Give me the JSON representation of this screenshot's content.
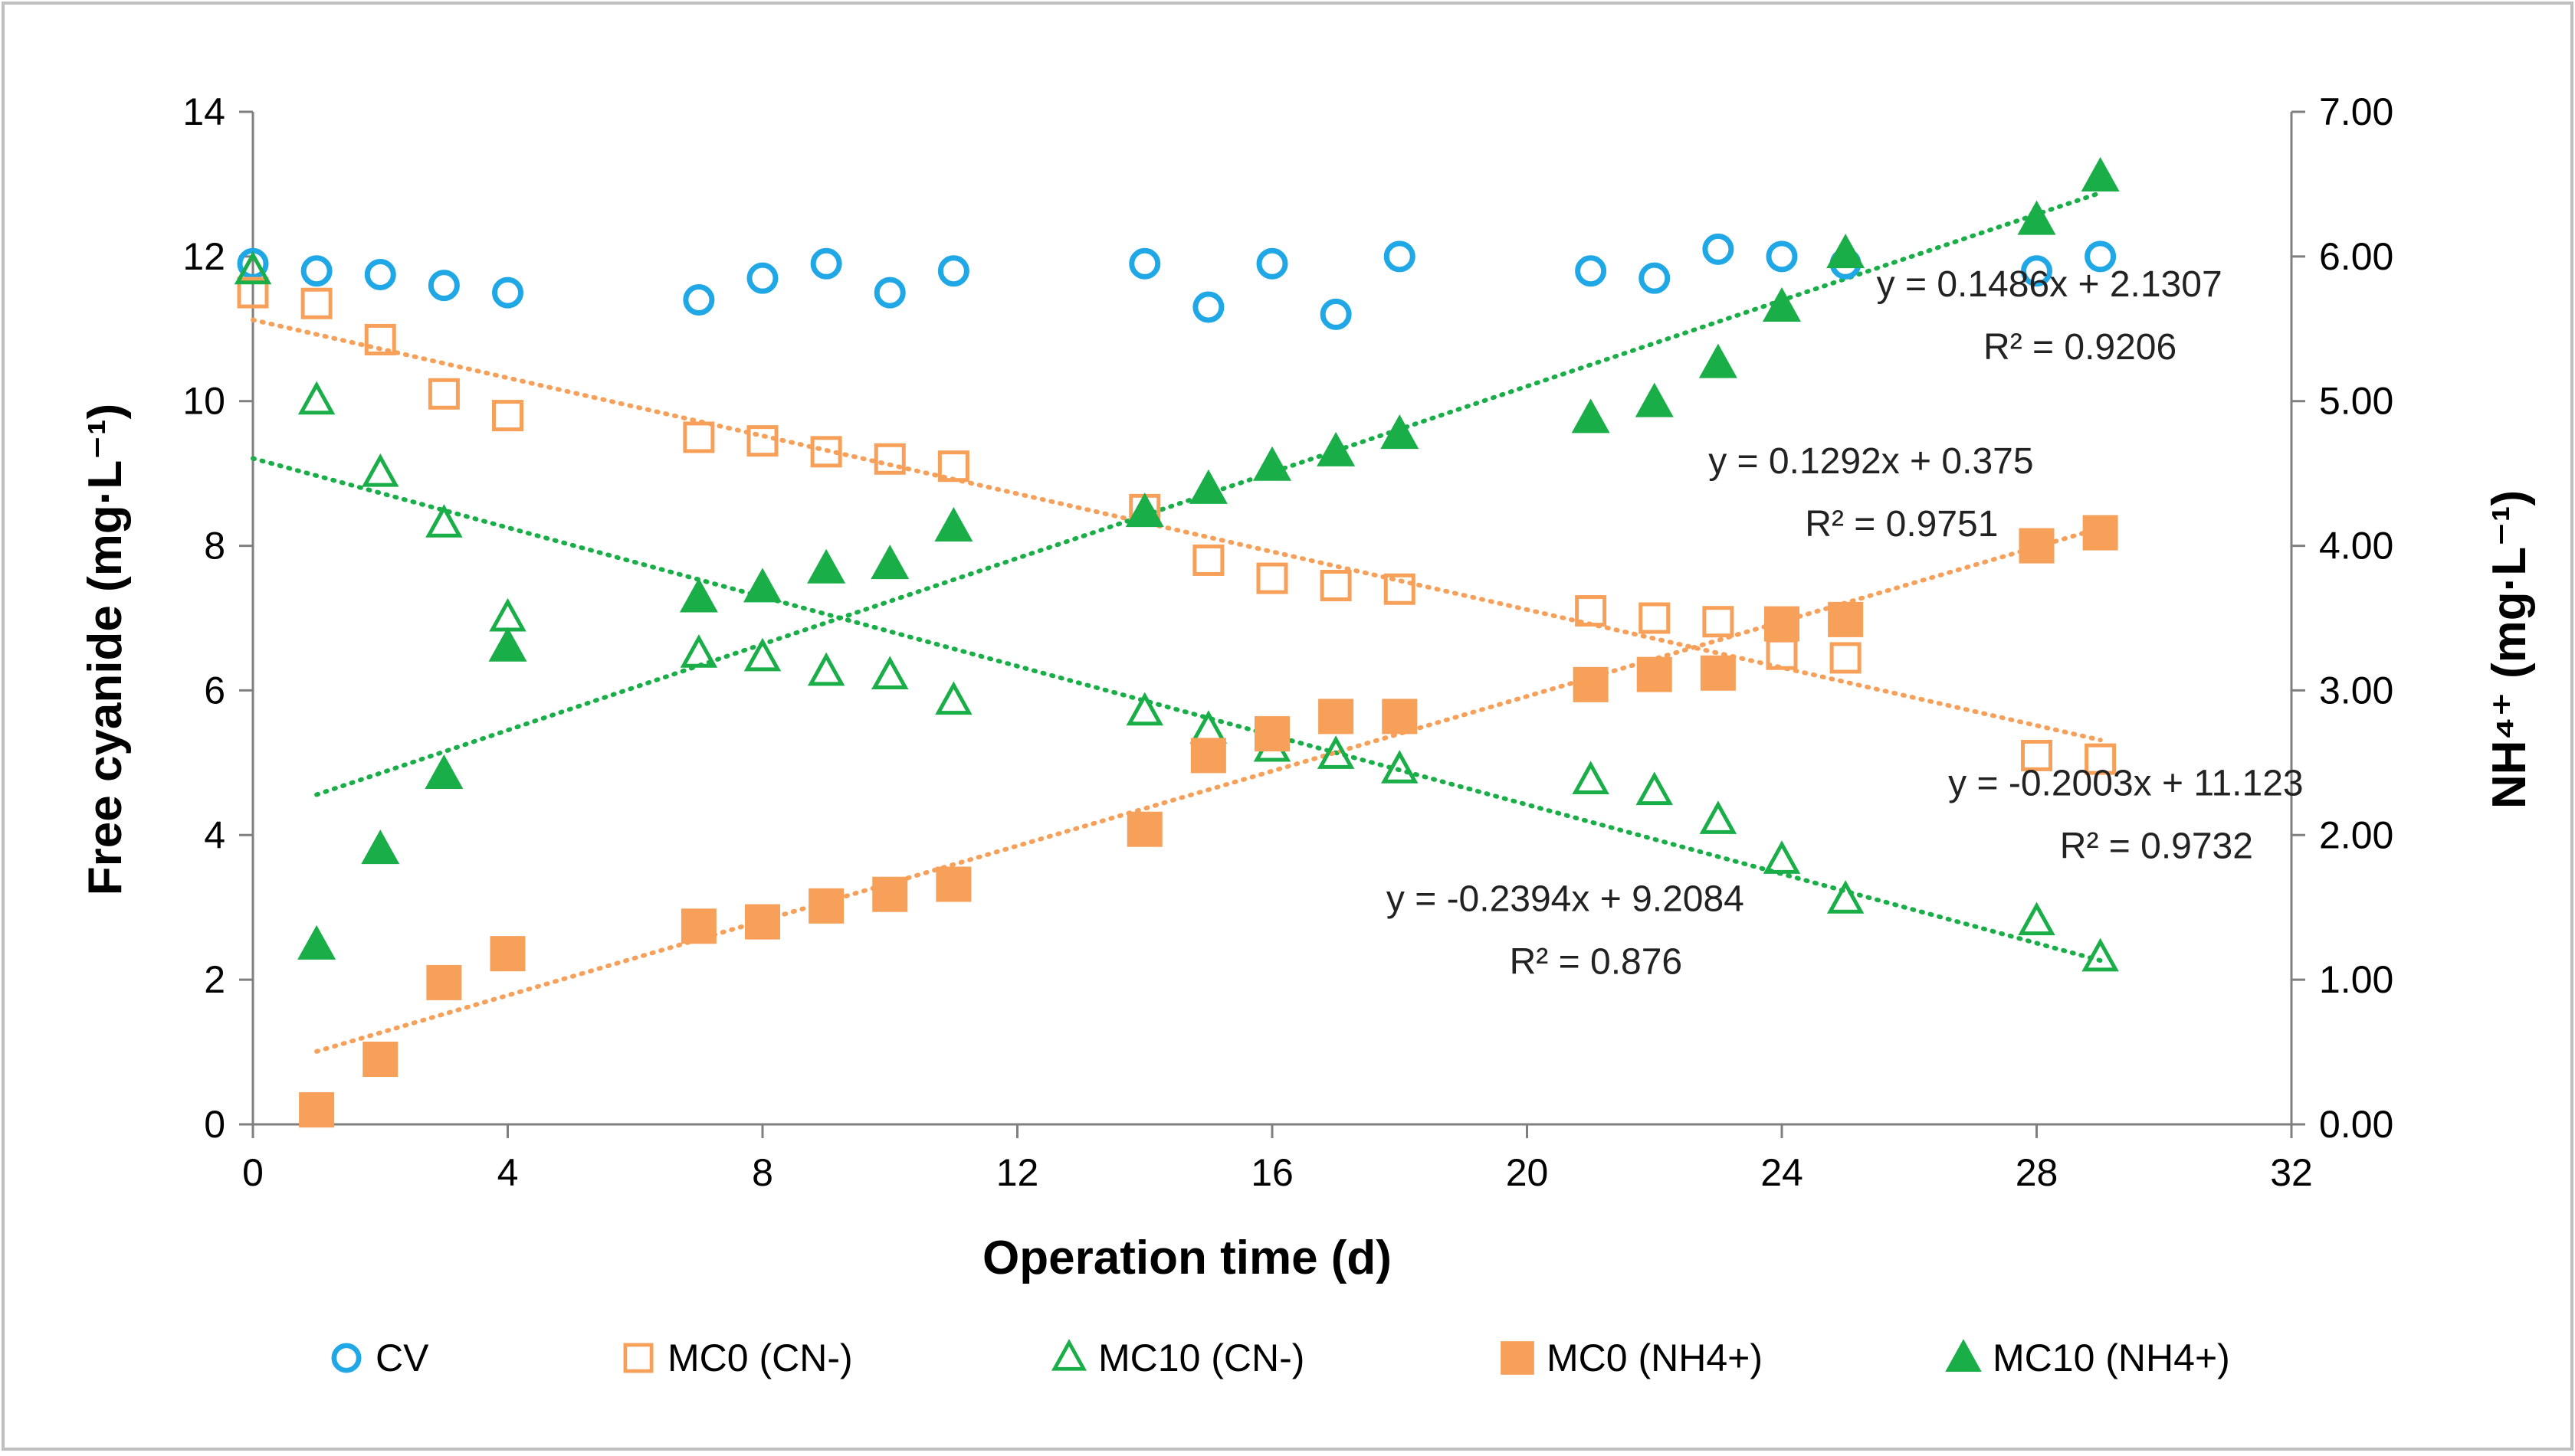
{
  "chart_data": {
    "type": "scatter",
    "title": "",
    "xlabel": "Operation time (d)",
    "ylabel": "Free cyanide (mg·L⁻¹)",
    "y2label": "NH⁴⁺ (mg·L⁻¹)",
    "xlim": [
      0,
      32
    ],
    "ylim": [
      0,
      14
    ],
    "y2lim": [
      0,
      7
    ],
    "x_ticks": [
      "0",
      "4",
      "8",
      "12",
      "16",
      "20",
      "24",
      "28",
      "32"
    ],
    "y_ticks": [
      "0",
      "2",
      "4",
      "6",
      "8",
      "10",
      "12",
      "14"
    ],
    "y2_ticks": [
      "0.00",
      "1.00",
      "2.00",
      "3.00",
      "4.00",
      "5.00",
      "6.00",
      "7.00"
    ],
    "legend_position": "bottom",
    "colors": {
      "blue": "#1fa7e6",
      "orange": "#f6a05a",
      "green": "#1aae48"
    },
    "series": [
      {
        "name": "CV",
        "axis": "left",
        "marker": "circle-open",
        "color": "#1fa7e6",
        "x": [
          0,
          1,
          2,
          3,
          4,
          7,
          8,
          9,
          10,
          11,
          14,
          15,
          16,
          17,
          18,
          21,
          22,
          23,
          24,
          25,
          28,
          29
        ],
        "y": [
          11.9,
          11.8,
          11.75,
          11.6,
          11.5,
          11.4,
          11.7,
          11.9,
          11.5,
          11.8,
          11.9,
          11.3,
          11.9,
          11.2,
          12.0,
          11.8,
          11.7,
          12.1,
          12.0,
          11.9,
          11.8,
          12.0
        ]
      },
      {
        "name": "MC0 (CN-)",
        "axis": "left",
        "marker": "square-open",
        "color": "#f6a05a",
        "x": [
          0,
          1,
          2,
          3,
          4,
          7,
          8,
          9,
          10,
          11,
          14,
          15,
          16,
          17,
          18,
          21,
          22,
          23,
          24,
          25,
          28,
          29
        ],
        "y": [
          11.5,
          11.35,
          10.85,
          10.1,
          9.8,
          9.5,
          9.45,
          9.3,
          9.2,
          9.1,
          8.5,
          7.8,
          7.55,
          7.45,
          7.4,
          7.1,
          7.0,
          6.95,
          6.5,
          6.45,
          5.1,
          5.05
        ]
      },
      {
        "name": "MC10 (CN-)",
        "axis": "left",
        "marker": "triangle-open",
        "color": "#1aae48",
        "x": [
          0,
          1,
          2,
          3,
          4,
          7,
          8,
          9,
          10,
          11,
          14,
          15,
          16,
          17,
          18,
          21,
          22,
          23,
          24,
          25,
          28,
          29
        ],
        "y": [
          11.8,
          10.0,
          9.0,
          8.3,
          7.0,
          6.5,
          6.45,
          6.25,
          6.2,
          5.85,
          5.7,
          5.45,
          5.2,
          5.1,
          4.9,
          4.75,
          4.6,
          4.2,
          3.65,
          3.1,
          2.8,
          2.3
        ]
      },
      {
        "name": "MC0 (NH4+)",
        "axis": "right",
        "marker": "square-filled",
        "color": "#f6a05a",
        "x": [
          1,
          2,
          3,
          4,
          7,
          8,
          9,
          10,
          11,
          14,
          15,
          16,
          17,
          18,
          21,
          22,
          23,
          24,
          25,
          28,
          29
        ],
        "y": [
          0.1,
          0.45,
          0.98,
          1.18,
          1.37,
          1.4,
          1.51,
          1.59,
          1.66,
          2.04,
          2.55,
          2.7,
          2.82,
          2.82,
          3.04,
          3.11,
          3.12,
          3.46,
          3.49,
          4.0,
          4.09
        ]
      },
      {
        "name": "MC10 (NH4+)",
        "axis": "right",
        "marker": "triangle-filled",
        "color": "#1aae48",
        "x": [
          1,
          2,
          3,
          4,
          7,
          8,
          9,
          10,
          11,
          14,
          15,
          16,
          17,
          18,
          21,
          22,
          23,
          24,
          25,
          28,
          29
        ],
        "y": [
          1.24,
          1.9,
          2.42,
          3.3,
          3.64,
          3.71,
          3.84,
          3.87,
          4.13,
          4.23,
          4.39,
          4.55,
          4.65,
          4.77,
          4.88,
          4.99,
          5.26,
          5.65,
          6.02,
          6.25,
          6.55
        ]
      }
    ],
    "trendlines": [
      {
        "series": "MC0 (CN-)",
        "axis": "left",
        "slope": -0.2003,
        "intercept": 11.123,
        "x_range": [
          0,
          29
        ],
        "equation": "y = -0.2003x + 11.123",
        "r2": "R² = 0.9732",
        "color": "#f6a05a"
      },
      {
        "series": "MC10 (CN-)",
        "axis": "left",
        "slope": -0.2394,
        "intercept": 9.2084,
        "x_range": [
          0,
          29
        ],
        "equation": "y = -0.2394x + 9.2084",
        "r2": "R² = 0.876",
        "color": "#1aae48"
      },
      {
        "series": "MC0 (NH4+)",
        "axis": "right",
        "slope": 0.1292,
        "intercept": 0.375,
        "x_range": [
          1,
          29
        ],
        "equation": "y = 0.1292x + 0.375",
        "r2": "R² = 0.9751",
        "color": "#f6a05a"
      },
      {
        "series": "MC10 (NH4+)",
        "axis": "right",
        "slope": 0.1486,
        "intercept": 2.1307,
        "x_range": [
          1,
          29
        ],
        "equation": "y = 0.1486x + 2.1307",
        "r2": "R² = 0.9206",
        "color": "#1aae48"
      }
    ]
  }
}
